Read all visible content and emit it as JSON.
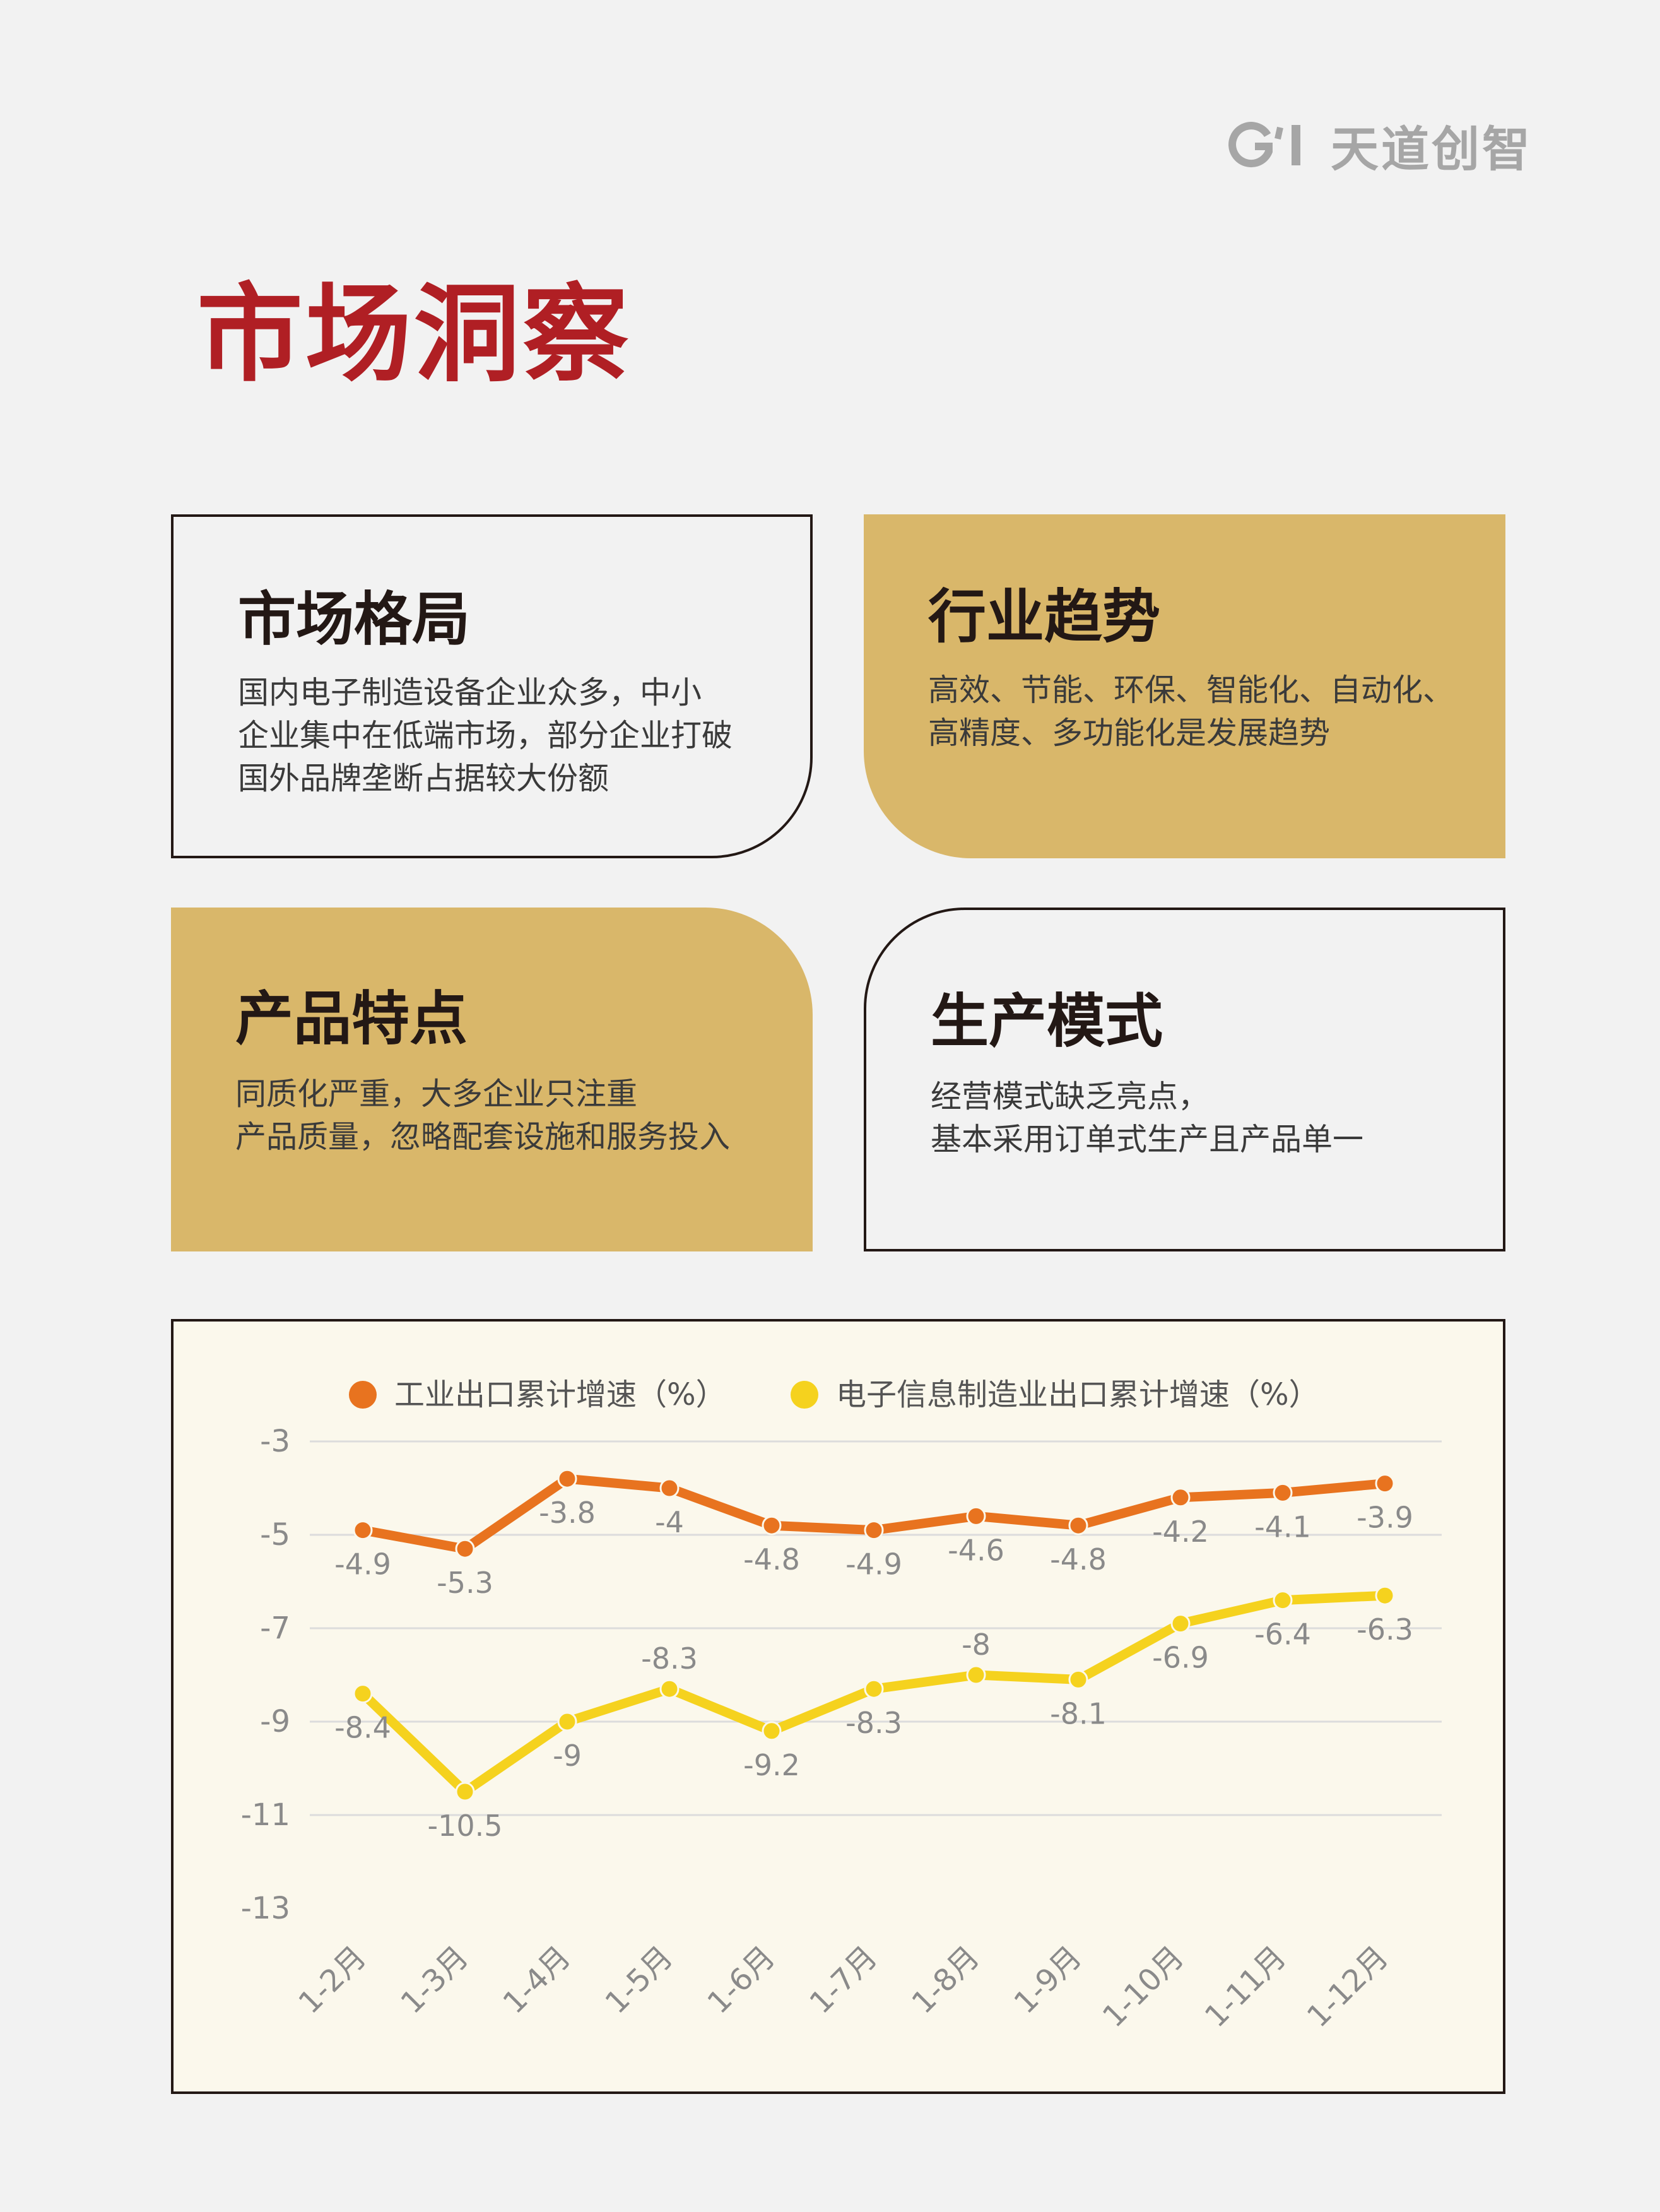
{
  "header": {
    "logo_text": "天道创智",
    "logo_mark_icon": "gi-logo-mark",
    "logo_color": "#a6a6a6"
  },
  "page": {
    "title": "市场洞察",
    "title_color": "#b01f24"
  },
  "cards": [
    {
      "title": "市场格局",
      "lines": [
        "国内电子制造设备企业众多，中小",
        "企业集中在低端市场，部分企业打破",
        "国外品牌垄断占据较大份额"
      ],
      "style": "outline"
    },
    {
      "title": "行业趋势",
      "lines": [
        "高效、节能、环保、智能化、自动化、",
        "高精度、多功能化是发展趋势"
      ],
      "style": "gold"
    },
    {
      "title": "产品特点",
      "lines": [
        "同质化严重，大多企业只注重",
        "产品质量，忽略配套设施和服务投入"
      ],
      "style": "gold"
    },
    {
      "title": "生产模式",
      "lines": [
        "经营模式缺乏亮点，",
        "基本采用订单式生产且产品单一"
      ],
      "style": "outline"
    }
  ],
  "colors": {
    "gold": "#d9b76a",
    "outline": "#231815",
    "chart_background": "#fbf8ec"
  },
  "chart_data": {
    "type": "line",
    "title": "",
    "xlabel": "",
    "ylabel": "",
    "categories": [
      "1-2月",
      "1-3月",
      "1-4月",
      "1-5月",
      "1-6月",
      "1-7月",
      "1-8月",
      "1-9月",
      "1-10月",
      "1-11月",
      "1-12月"
    ],
    "series": [
      {
        "name": "工业出口累计增速（%）",
        "color": "#e8731f",
        "values": [
          -4.9,
          -5.3,
          -3.8,
          -4,
          -4.8,
          -4.9,
          -4.6,
          -4.8,
          -4.2,
          -4.1,
          -3.9
        ]
      },
      {
        "name": "电子信息制造业出口累计增速（%）",
        "color": "#f5d21e",
        "values": [
          -8.4,
          -10.5,
          -9,
          -8.3,
          -9.2,
          -8.3,
          -8,
          -8.1,
          -6.9,
          -6.4,
          -6.3
        ]
      }
    ],
    "yticks": [
      -3,
      -5,
      -7,
      -9,
      -11,
      -13
    ],
    "ylim": [
      -13,
      -3
    ],
    "grid": true,
    "legend": "top"
  }
}
